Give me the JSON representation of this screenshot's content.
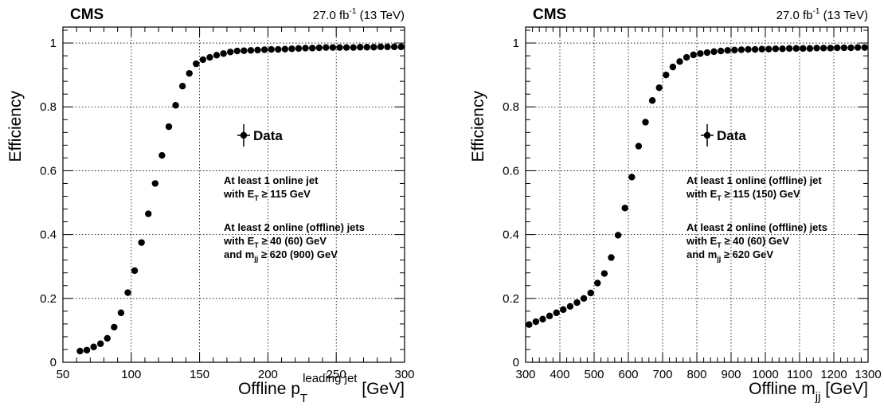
{
  "chart_data": [
    {
      "type": "scatter",
      "experiment": "CMS",
      "lumi": "27.0 fb",
      "lumi_sup": "-1",
      "energy": " (13 TeV)",
      "ylabel": "Efficiency",
      "xlabel_main": "Offline p",
      "xlabel_sub": "T",
      "xlabel_sup": "leading jet",
      "xlabel_unit": " [GeV]",
      "xlim": [
        50,
        300
      ],
      "ylim": [
        0,
        1.05
      ],
      "x_ticks": [
        50,
        100,
        150,
        200,
        250,
        300
      ],
      "y_ticks": [
        0,
        0.2,
        0.4,
        0.6,
        0.8,
        1
      ],
      "grid": true,
      "legend": "Data",
      "legend_position": "center-right",
      "annotations": [
        {
          "lines": [
            [
              {
                "t": "At least 1 online jet"
              }
            ],
            [
              {
                "t": "with E"
              },
              {
                "t": "T",
                "sub": true
              },
              {
                "t": " ≥ 115 GeV"
              }
            ]
          ]
        },
        {
          "lines": [
            [
              {
                "t": "At least 2 online (offline) jets"
              }
            ],
            [
              {
                "t": "with E"
              },
              {
                "t": "T",
                "sub": true
              },
              {
                "t": " ≥ 40 (60) GeV"
              }
            ],
            [
              {
                "t": "and m"
              },
              {
                "t": "jj",
                "sub": true
              },
              {
                "t": " ≥ 620 (900) GeV"
              }
            ]
          ]
        }
      ],
      "series": [
        {
          "name": "Data",
          "x": [
            62.5,
            67.5,
            72.5,
            77.5,
            82.5,
            87.5,
            92.5,
            97.5,
            102.5,
            107.5,
            112.5,
            117.5,
            122.5,
            127.5,
            132.5,
            137.5,
            142.5,
            147.5,
            152.5,
            157.5,
            162.5,
            167.5,
            172.5,
            177.5,
            182.5,
            187.5,
            192.5,
            197.5,
            202.5,
            207.5,
            212.5,
            217.5,
            222.5,
            227.5,
            232.5,
            237.5,
            242.5,
            247.5,
            252.5,
            257.5,
            262.5,
            267.5,
            272.5,
            277.5,
            282.5,
            287.5,
            292.5,
            297.5
          ],
          "y": [
            0.035,
            0.038,
            0.048,
            0.058,
            0.075,
            0.11,
            0.155,
            0.218,
            0.287,
            0.375,
            0.465,
            0.56,
            0.648,
            0.738,
            0.805,
            0.865,
            0.905,
            0.935,
            0.948,
            0.955,
            0.962,
            0.967,
            0.972,
            0.975,
            0.976,
            0.977,
            0.978,
            0.979,
            0.98,
            0.98,
            0.981,
            0.982,
            0.983,
            0.984,
            0.984,
            0.985,
            0.986,
            0.986,
            0.986,
            0.986,
            0.986,
            0.987,
            0.987,
            0.987,
            0.988,
            0.988,
            0.988,
            0.988
          ]
        }
      ]
    },
    {
      "type": "scatter",
      "experiment": "CMS",
      "lumi": "27.0 fb",
      "lumi_sup": "-1",
      "energy": " (13 TeV)",
      "ylabel": "Efficiency",
      "xlabel_main": "Offline m",
      "xlabel_sub": "jj",
      "xlabel_sup": "",
      "xlabel_unit": " [GeV]",
      "xlim": [
        300,
        1300
      ],
      "ylim": [
        0,
        1.05
      ],
      "x_ticks": [
        300,
        400,
        500,
        600,
        700,
        800,
        900,
        1000,
        1100,
        1200,
        1300
      ],
      "y_ticks": [
        0,
        0.2,
        0.4,
        0.6,
        0.8,
        1
      ],
      "grid": true,
      "legend": "Data",
      "legend_position": "center-right",
      "annotations": [
        {
          "lines": [
            [
              {
                "t": "At least 1 online (offline) jet"
              }
            ],
            [
              {
                "t": "with E"
              },
              {
                "t": "T",
                "sub": true
              },
              {
                "t": " ≥ 115 (150) GeV"
              }
            ]
          ]
        },
        {
          "lines": [
            [
              {
                "t": "At least 2 online (offline) jets"
              }
            ],
            [
              {
                "t": "with E"
              },
              {
                "t": "T",
                "sub": true
              },
              {
                "t": " ≥ 40 (60) GeV"
              }
            ],
            [
              {
                "t": "and m"
              },
              {
                "t": "jj",
                "sub": true
              },
              {
                "t": " ≥ 620 GeV"
              }
            ]
          ]
        }
      ],
      "series": [
        {
          "name": "Data",
          "x": [
            310,
            330,
            350,
            370,
            390,
            410,
            430,
            450,
            470,
            490,
            510,
            530,
            550,
            570,
            590,
            610,
            630,
            650,
            670,
            690,
            710,
            730,
            750,
            770,
            790,
            810,
            830,
            850,
            870,
            890,
            910,
            930,
            950,
            970,
            990,
            1010,
            1030,
            1050,
            1070,
            1090,
            1110,
            1130,
            1150,
            1170,
            1190,
            1210,
            1230,
            1250,
            1270,
            1290
          ],
          "y": [
            0.118,
            0.127,
            0.135,
            0.145,
            0.155,
            0.165,
            0.175,
            0.187,
            0.2,
            0.217,
            0.248,
            0.278,
            0.328,
            0.398,
            0.483,
            0.58,
            0.677,
            0.752,
            0.82,
            0.86,
            0.9,
            0.925,
            0.942,
            0.955,
            0.963,
            0.967,
            0.97,
            0.973,
            0.975,
            0.977,
            0.978,
            0.979,
            0.98,
            0.98,
            0.981,
            0.981,
            0.982,
            0.982,
            0.983,
            0.983,
            0.983,
            0.983,
            0.984,
            0.984,
            0.984,
            0.985,
            0.985,
            0.985,
            0.986,
            0.986
          ]
        }
      ]
    }
  ]
}
